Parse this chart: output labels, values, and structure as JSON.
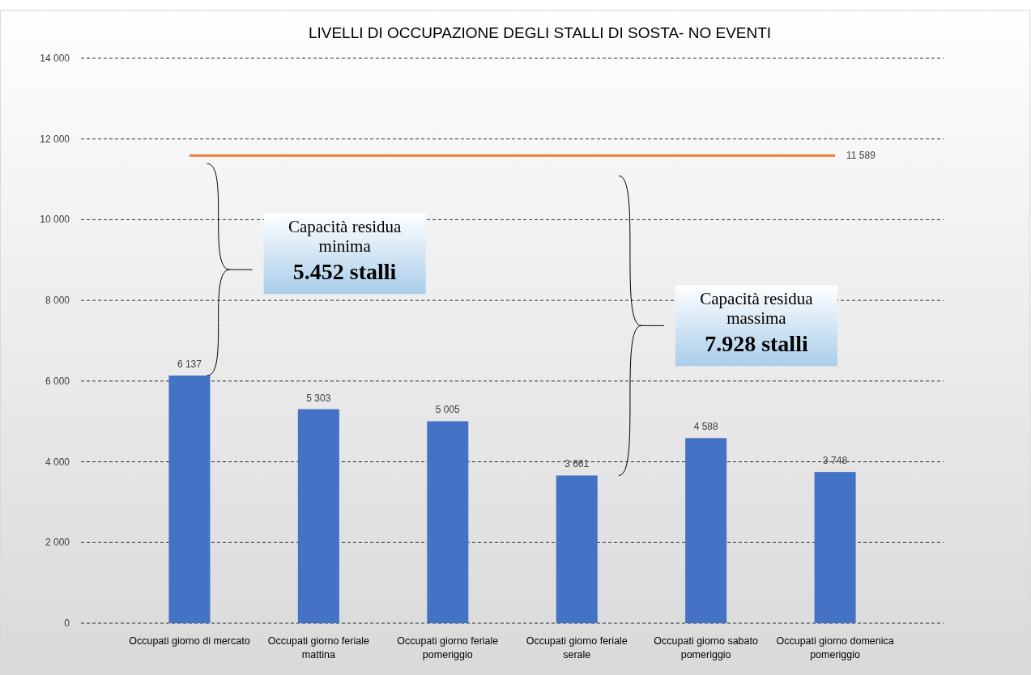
{
  "chart_data": {
    "type": "bar",
    "title": "LIVELLI DI OCCUPAZIONE DEGLI STALLI DI SOSTA- NO EVENTI",
    "categories": [
      "Occupati giorno di mercato",
      "Occupati giorno feriale mattina",
      "Occupati giorno feriale pomeriggio",
      "Occupati giorno feriale serale",
      "Occupati giorno sabato pomeriggio",
      "Occupati giorno domenica pomeriggio"
    ],
    "series": [
      {
        "color": "#4472c4",
        "values": [
          6137,
          5303,
          5005,
          3661,
          4588,
          3748
        ],
        "value_labels": [
          "6 137",
          "5 303",
          "5 005",
          "3 661",
          "4 588",
          "3 748"
        ]
      },
      {
        "type": "line",
        "color": "#ed7d31",
        "values": [
          11589,
          11589,
          11589,
          11589,
          11589,
          11589
        ],
        "value_labels": [
          null,
          null,
          null,
          null,
          null,
          "11 589"
        ]
      }
    ],
    "ylim": [
      0,
      14000
    ],
    "yticks": [
      0,
      {
        "value": 2000,
        "label": "2 000"
      },
      {
        "value": 4000,
        "label": "4 000"
      },
      {
        "value": 6000,
        "label": "6 000"
      },
      {
        "value": 8000,
        "label": "8 000"
      },
      {
        "value": 10000,
        "label": "10 000"
      },
      {
        "value": 12000,
        "label": "12 000"
      },
      {
        "value": 14000,
        "label": "14 000"
      }
    ],
    "grid": "y",
    "line_style": "solid",
    "marker": "none",
    "annotations": [
      "Capacità residua\nminima\n5.452 stalli",
      "Capacità residua\nmassima\n7.928 stalli"
    ]
  }
}
